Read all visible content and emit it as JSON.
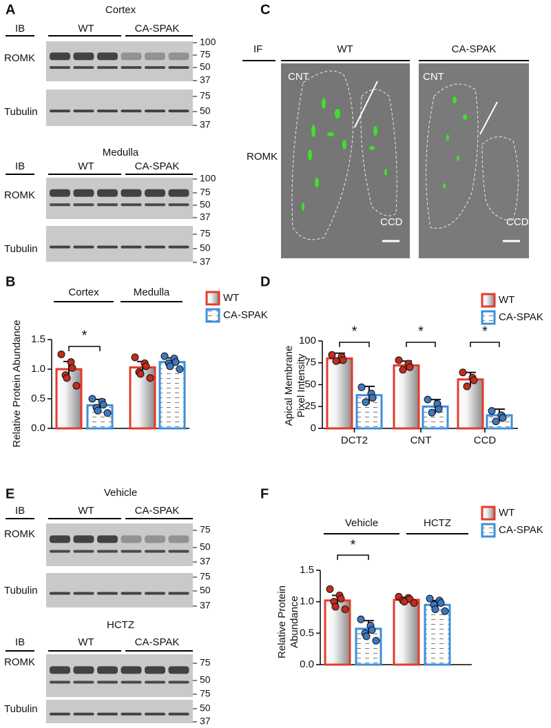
{
  "blot_panels": [
    {
      "letter": "A",
      "blots": [
        {
          "title": "Cortex",
          "ib": "IB",
          "groups": [
            "WT",
            "CA-SPAK"
          ],
          "rows": [
            {
              "label": "ROMK",
              "markers": [
                100,
                75,
                50,
                37
              ]
            },
            {
              "label": "Tubulin",
              "markers": [
                75,
                50,
                37
              ]
            }
          ]
        },
        {
          "title": "Medulla",
          "ib": "IB",
          "groups": [
            "WT",
            "CA-SPAK"
          ],
          "rows": [
            {
              "label": "ROMK",
              "markers": [
                100,
                75,
                50,
                37
              ]
            },
            {
              "label": "Tubulin",
              "markers": [
                75,
                50,
                37
              ]
            }
          ]
        }
      ]
    },
    {
      "letter": "E",
      "blots": [
        {
          "title": "Vehicle",
          "ib": "IB",
          "groups": [
            "WT",
            "CA-SPAK"
          ],
          "rows": [
            {
              "label": "ROMK",
              "markers": [
                75,
                50,
                37
              ]
            },
            {
              "label": "Tubulin",
              "markers": [
                75,
                50,
                37
              ]
            }
          ]
        },
        {
          "title": "HCTZ",
          "ib": "IB",
          "groups": [
            "WT",
            "CA-SPAK"
          ],
          "rows": [
            {
              "label": "ROMK",
              "markers": [
                75,
                50
              ]
            },
            {
              "label": "Tubulin",
              "markers": [
                75,
                50,
                37
              ]
            }
          ]
        }
      ]
    }
  ],
  "if_panel": {
    "letter": "C",
    "method": "IF",
    "stain": "ROMK",
    "images": [
      {
        "title": "WT",
        "labels": [
          "CNT",
          "CCD"
        ]
      },
      {
        "title": "CA-SPAK",
        "labels": [
          "CNT",
          "CCD"
        ]
      }
    ]
  },
  "chart_data": [
    {
      "type": "bar",
      "panel": "B",
      "ylabel": [
        "Relative Protein Abundance"
      ],
      "categories": [
        "Cortex",
        "Medulla"
      ],
      "significance": [
        "*",
        null
      ],
      "ylim": [
        0,
        1.5
      ],
      "yticks": [
        {
          "value": 0,
          "label": "0.0"
        },
        {
          "value": 0.5,
          "label": "0.5"
        },
        {
          "value": 1,
          "label": "1.0"
        },
        {
          "value": 1.5,
          "label": "1.5"
        }
      ],
      "series": [
        {
          "name": "WT",
          "color": "#e53a2c",
          "values": [
            1.0,
            1.03
          ],
          "errors": [
            0.13,
            0.1
          ],
          "points": [
            [
              1.25,
              1.12,
              1.02,
              0.9,
              0.85,
              0.72
            ],
            [
              1.2,
              1.1,
              1.05,
              0.95,
              0.92,
              0.85
            ]
          ]
        },
        {
          "name": "CA-SPAK",
          "color": "#3b8fdc",
          "values": [
            0.39,
            1.12
          ],
          "errors": [
            0.1,
            0.07
          ],
          "points": [
            [
              0.5,
              0.45,
              0.4,
              0.35,
              0.3,
              0.26
            ],
            [
              1.22,
              1.18,
              1.12,
              1.1,
              1.05,
              1.0
            ]
          ]
        }
      ]
    },
    {
      "type": "bar",
      "panel": "D",
      "ylabel": [
        "Apical Membrane",
        "Pixel Intensity"
      ],
      "categories": [
        "DCT2",
        "CNT",
        "CCD"
      ],
      "significance": [
        "*",
        "*",
        "*"
      ],
      "ylim": [
        0,
        100
      ],
      "yticks": [
        0,
        25,
        50,
        75,
        100
      ],
      "series": [
        {
          "name": "WT",
          "color": "#e53a2c",
          "values": [
            80,
            72,
            56
          ],
          "errors": [
            6,
            5,
            8
          ],
          "points": [
            [
              84,
              82,
              78,
              77
            ],
            [
              78,
              74,
              70,
              67
            ],
            [
              64,
              58,
              55,
              48
            ]
          ]
        },
        {
          "name": "CA-SPAK",
          "color": "#3b8fdc",
          "values": [
            38,
            25,
            15
          ],
          "errors": [
            10,
            8,
            7
          ],
          "points": [
            [
              47,
              40,
              35,
              30
            ],
            [
              33,
              28,
              22,
              18
            ],
            [
              20,
              15,
              12,
              8
            ]
          ]
        }
      ]
    },
    {
      "type": "bar",
      "panel": "F",
      "ylabel": [
        "Relative Protein",
        "Abundance"
      ],
      "categories": [
        "Vehicle",
        "HCTZ"
      ],
      "significance": [
        "*",
        null
      ],
      "ylim": [
        0,
        1.5
      ],
      "yticks": [
        {
          "value": 0,
          "label": "0.0"
        },
        {
          "value": 0.5,
          "label": "0.5"
        },
        {
          "value": 1,
          "label": "1.0"
        },
        {
          "value": 1.5,
          "label": "1.5"
        }
      ],
      "series": [
        {
          "name": "WT",
          "color": "#e53a2c",
          "values": [
            1.02,
            1.03
          ],
          "errors": [
            0.08,
            0.04
          ],
          "points": [
            [
              1.2,
              1.1,
              1.05,
              1.0,
              0.92,
              0.88
            ],
            [
              1.08,
              1.06,
              1.04,
              1.02,
              1.0,
              0.98
            ]
          ]
        },
        {
          "name": "CA-SPAK",
          "color": "#3b8fdc",
          "values": [
            0.57,
            0.95
          ],
          "errors": [
            0.13,
            0.07
          ],
          "points": [
            [
              0.72,
              0.62,
              0.55,
              0.5,
              0.45,
              0.38
            ],
            [
              1.05,
              1.02,
              0.98,
              0.95,
              0.88,
              0.85
            ]
          ]
        }
      ]
    }
  ]
}
